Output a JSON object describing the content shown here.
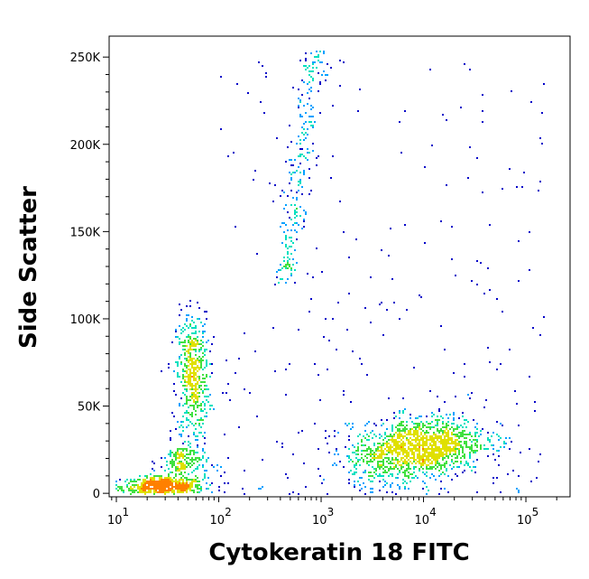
{
  "chart_data": {
    "type": "scatter",
    "subtype": "density-dot-plot",
    "xlabel": "Cytokeratin 18 FITC",
    "ylabel": "Side Scatter",
    "xscale": "log",
    "xlim": [
      8.5,
      270000
    ],
    "ylim": [
      -2000,
      262000
    ],
    "yscale": "linear",
    "x_ticks": [
      {
        "value": 10,
        "base": "10",
        "exp": "1"
      },
      {
        "value": 100,
        "base": "10",
        "exp": "2"
      },
      {
        "value": 1000,
        "base": "10",
        "exp": "3"
      },
      {
        "value": 10000,
        "base": "10",
        "exp": "4"
      },
      {
        "value": 100000,
        "base": "10",
        "exp": "5"
      }
    ],
    "y_ticks": [
      {
        "value": 0,
        "label": "0"
      },
      {
        "value": 50000,
        "label": "50K"
      },
      {
        "value": 100000,
        "label": "100K"
      },
      {
        "value": 150000,
        "label": "150K"
      },
      {
        "value": 200000,
        "label": "200K"
      },
      {
        "value": 250000,
        "label": "250K"
      }
    ],
    "grid": false,
    "legend": "none",
    "color_scale": [
      "#0000c8",
      "#00a0ff",
      "#00e0c0",
      "#40e040",
      "#e0e000",
      "#ff8000",
      "#e00000"
    ],
    "populations": [
      {
        "x_center": 28,
        "x_spread_decades": 0.2,
        "y_center": 5000,
        "y_spread": 3500,
        "count": 600
      },
      {
        "x_center": 55,
        "x_spread_decades": 0.08,
        "y_center": 68000,
        "y_spread": 18000,
        "count": 550
      },
      {
        "x_center": 45,
        "x_spread_decades": 0.12,
        "y_center": 18000,
        "y_spread": 6000,
        "count": 200
      },
      {
        "x_center": 600,
        "x_spread_decades": 0.07,
        "y_min": 120000,
        "y_max": 255000,
        "count": 260
      },
      {
        "x_center": 8500,
        "x_spread_decades": 0.33,
        "y_center": 26000,
        "y_spread": 9000,
        "count": 1500
      },
      {
        "x_min": 100,
        "x_max": 150000,
        "y_min": 0,
        "y_max": 250000,
        "count": 260
      }
    ]
  }
}
